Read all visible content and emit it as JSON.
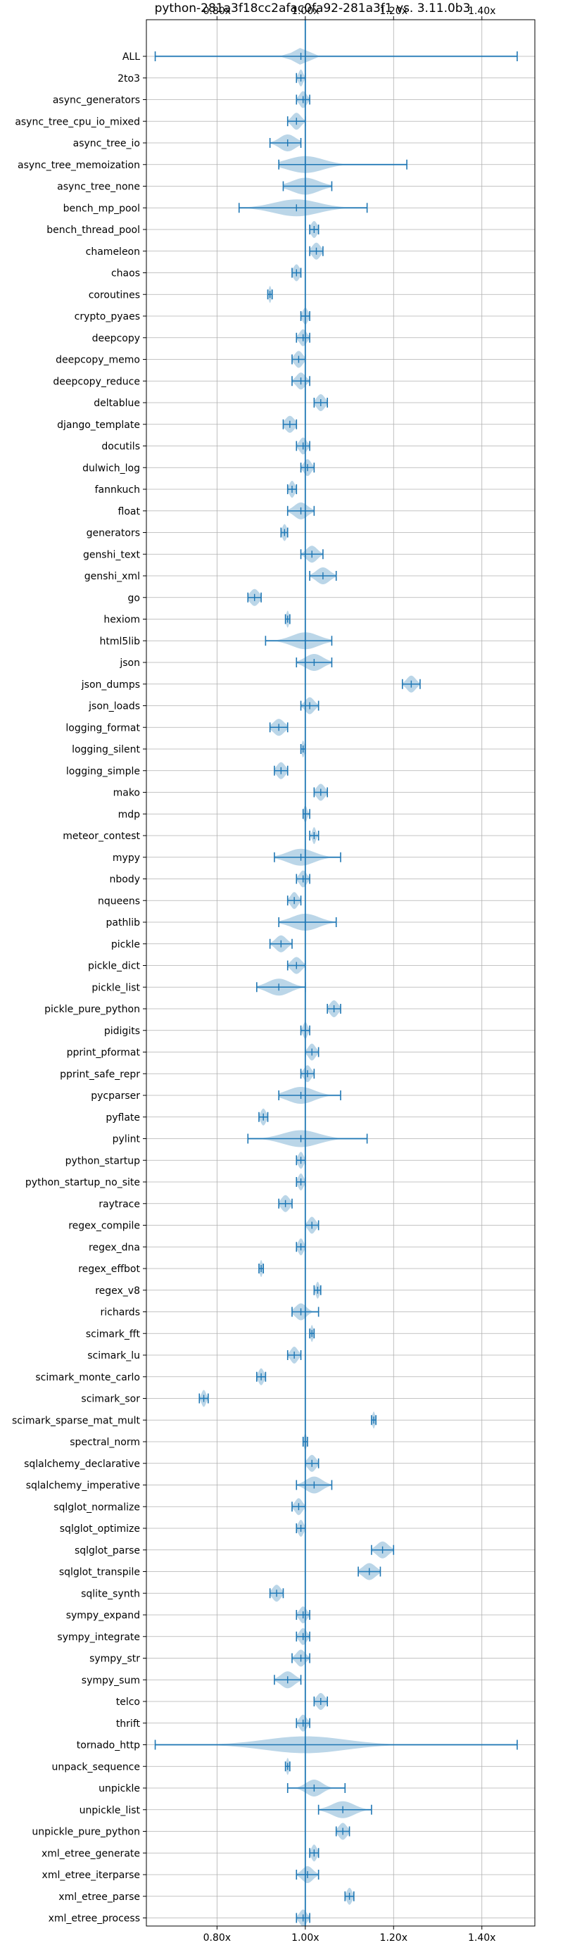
{
  "chart_data": {
    "type": "violin",
    "title": "python-281a3f18cc2afac0fa92-281a3f1 vs. 3.11.0b3",
    "xlabel": "",
    "ylabel": "",
    "xlim": [
      0.64,
      1.52
    ],
    "x_ticks": [
      0.8,
      1.0,
      1.2,
      1.4
    ],
    "x_tick_labels": [
      "0.80x",
      "1.00x",
      "1.20x",
      "1.40x"
    ],
    "reference_line": 1.0,
    "grid": true,
    "colors": {
      "violin": "#1f77b4",
      "violin_fill_opacity": 0.3,
      "axis": "#000000",
      "grid": "#b0b0b0"
    },
    "series": [
      {
        "name": "ALL",
        "min": 0.66,
        "max": 1.48,
        "median": 0.99,
        "spread": 0.017
      },
      {
        "name": "2to3",
        "min": 0.98,
        "max": 1.0,
        "median": 0.99,
        "spread": 0.005
      },
      {
        "name": "async_generators",
        "min": 0.98,
        "max": 1.01,
        "median": 0.995,
        "spread": 0.008
      },
      {
        "name": "async_tree_cpu_io_mixed",
        "min": 0.96,
        "max": 1.0,
        "median": 0.98,
        "spread": 0.01
      },
      {
        "name": "async_tree_io",
        "min": 0.92,
        "max": 0.99,
        "median": 0.96,
        "spread": 0.018
      },
      {
        "name": "async_tree_memoization",
        "min": 0.94,
        "max": 1.23,
        "median": 1.0,
        "spread": 0.04
      },
      {
        "name": "async_tree_none",
        "min": 0.95,
        "max": 1.06,
        "median": 1.0,
        "spread": 0.03
      },
      {
        "name": "bench_mp_pool",
        "min": 0.85,
        "max": 1.14,
        "median": 0.98,
        "spread": 0.05
      },
      {
        "name": "bench_thread_pool",
        "min": 1.01,
        "max": 1.03,
        "median": 1.02,
        "spread": 0.007
      },
      {
        "name": "chameleon",
        "min": 1.01,
        "max": 1.04,
        "median": 1.025,
        "spread": 0.009
      },
      {
        "name": "chaos",
        "min": 0.97,
        "max": 0.99,
        "median": 0.98,
        "spread": 0.007
      },
      {
        "name": "coroutines",
        "min": 0.915,
        "max": 0.925,
        "median": 0.92,
        "spread": 0.003
      },
      {
        "name": "crypto_pyaes",
        "min": 0.99,
        "max": 1.01,
        "median": 1.0,
        "spread": 0.006
      },
      {
        "name": "deepcopy",
        "min": 0.98,
        "max": 1.01,
        "median": 0.995,
        "spread": 0.008
      },
      {
        "name": "deepcopy_memo",
        "min": 0.97,
        "max": 1.0,
        "median": 0.985,
        "spread": 0.009
      },
      {
        "name": "deepcopy_reduce",
        "min": 0.97,
        "max": 1.01,
        "median": 0.99,
        "spread": 0.01
      },
      {
        "name": "deltablue",
        "min": 1.02,
        "max": 1.05,
        "median": 1.035,
        "spread": 0.009
      },
      {
        "name": "django_template",
        "min": 0.95,
        "max": 0.98,
        "median": 0.965,
        "spread": 0.01
      },
      {
        "name": "docutils",
        "min": 0.98,
        "max": 1.01,
        "median": 0.995,
        "spread": 0.008
      },
      {
        "name": "dulwich_log",
        "min": 0.99,
        "max": 1.02,
        "median": 1.005,
        "spread": 0.008
      },
      {
        "name": "fannkuch",
        "min": 0.96,
        "max": 0.98,
        "median": 0.97,
        "spread": 0.006
      },
      {
        "name": "float",
        "min": 0.96,
        "max": 1.02,
        "median": 0.99,
        "spread": 0.015
      },
      {
        "name": "generators",
        "min": 0.945,
        "max": 0.96,
        "median": 0.953,
        "spread": 0.005
      },
      {
        "name": "genshi_text",
        "min": 0.99,
        "max": 1.04,
        "median": 1.015,
        "spread": 0.012
      },
      {
        "name": "genshi_xml",
        "min": 1.01,
        "max": 1.07,
        "median": 1.04,
        "spread": 0.015
      },
      {
        "name": "go",
        "min": 0.87,
        "max": 0.9,
        "median": 0.885,
        "spread": 0.01
      },
      {
        "name": "hexiom",
        "min": 0.955,
        "max": 0.965,
        "median": 0.96,
        "spread": 0.003
      },
      {
        "name": "html5lib",
        "min": 0.91,
        "max": 1.06,
        "median": 1.0,
        "spread": 0.03
      },
      {
        "name": "json",
        "min": 0.98,
        "max": 1.06,
        "median": 1.02,
        "spread": 0.02
      },
      {
        "name": "json_dumps",
        "min": 1.22,
        "max": 1.26,
        "median": 1.24,
        "spread": 0.01
      },
      {
        "name": "json_loads",
        "min": 0.99,
        "max": 1.03,
        "median": 1.01,
        "spread": 0.01
      },
      {
        "name": "logging_format",
        "min": 0.92,
        "max": 0.96,
        "median": 0.94,
        "spread": 0.012
      },
      {
        "name": "logging_silent",
        "min": 0.99,
        "max": 1.0,
        "median": 0.995,
        "spread": 0.003
      },
      {
        "name": "logging_simple",
        "min": 0.93,
        "max": 0.96,
        "median": 0.945,
        "spread": 0.009
      },
      {
        "name": "mako",
        "min": 1.02,
        "max": 1.05,
        "median": 1.035,
        "spread": 0.009
      },
      {
        "name": "mdp",
        "min": 0.995,
        "max": 1.01,
        "median": 1.0,
        "spread": 0.004
      },
      {
        "name": "meteor_contest",
        "min": 1.01,
        "max": 1.03,
        "median": 1.02,
        "spread": 0.004
      },
      {
        "name": "mypy",
        "min": 0.93,
        "max": 1.08,
        "median": 0.99,
        "spread": 0.03
      },
      {
        "name": "nbody",
        "min": 0.98,
        "max": 1.01,
        "median": 0.995,
        "spread": 0.008
      },
      {
        "name": "nqueens",
        "min": 0.96,
        "max": 0.99,
        "median": 0.975,
        "spread": 0.008
      },
      {
        "name": "pathlib",
        "min": 0.94,
        "max": 1.07,
        "median": 1.0,
        "spread": 0.03
      },
      {
        "name": "pickle",
        "min": 0.92,
        "max": 0.97,
        "median": 0.945,
        "spread": 0.012
      },
      {
        "name": "pickle_dict",
        "min": 0.96,
        "max": 1.0,
        "median": 0.98,
        "spread": 0.011
      },
      {
        "name": "pickle_list",
        "min": 0.89,
        "max": 1.0,
        "median": 0.94,
        "spread": 0.025
      },
      {
        "name": "pickle_pure_python",
        "min": 1.05,
        "max": 1.08,
        "median": 1.065,
        "spread": 0.009
      },
      {
        "name": "pidigits",
        "min": 0.99,
        "max": 1.01,
        "median": 1.0,
        "spread": 0.005
      },
      {
        "name": "pprint_pformat",
        "min": 1.0,
        "max": 1.03,
        "median": 1.015,
        "spread": 0.008
      },
      {
        "name": "pprint_safe_repr",
        "min": 0.99,
        "max": 1.02,
        "median": 1.005,
        "spread": 0.008
      },
      {
        "name": "pycparser",
        "min": 0.94,
        "max": 1.08,
        "median": 0.99,
        "spread": 0.03
      },
      {
        "name": "pyflate",
        "min": 0.895,
        "max": 0.915,
        "median": 0.905,
        "spread": 0.006
      },
      {
        "name": "pylint",
        "min": 0.87,
        "max": 1.14,
        "median": 0.99,
        "spread": 0.04
      },
      {
        "name": "python_startup",
        "min": 0.98,
        "max": 1.0,
        "median": 0.99,
        "spread": 0.006
      },
      {
        "name": "python_startup_no_site",
        "min": 0.98,
        "max": 1.0,
        "median": 0.99,
        "spread": 0.006
      },
      {
        "name": "raytrace",
        "min": 0.94,
        "max": 0.97,
        "median": 0.955,
        "spread": 0.009
      },
      {
        "name": "regex_compile",
        "min": 1.0,
        "max": 1.03,
        "median": 1.015,
        "spread": 0.008
      },
      {
        "name": "regex_dna",
        "min": 0.98,
        "max": 1.0,
        "median": 0.99,
        "spread": 0.006
      },
      {
        "name": "regex_effbot",
        "min": 0.895,
        "max": 0.905,
        "median": 0.9,
        "spread": 0.003
      },
      {
        "name": "regex_v8",
        "min": 1.02,
        "max": 1.035,
        "median": 1.028,
        "spread": 0.004
      },
      {
        "name": "richards",
        "min": 0.97,
        "max": 1.03,
        "median": 0.99,
        "spread": 0.012
      },
      {
        "name": "scimark_fft",
        "min": 1.01,
        "max": 1.02,
        "median": 1.015,
        "spread": 0.003
      },
      {
        "name": "scimark_lu",
        "min": 0.96,
        "max": 0.99,
        "median": 0.975,
        "spread": 0.008
      },
      {
        "name": "scimark_monte_carlo",
        "min": 0.89,
        "max": 0.91,
        "median": 0.9,
        "spread": 0.006
      },
      {
        "name": "scimark_sor",
        "min": 0.76,
        "max": 0.78,
        "median": 0.77,
        "spread": 0.005
      },
      {
        "name": "scimark_sparse_mat_mult",
        "min": 1.15,
        "max": 1.16,
        "median": 1.155,
        "spread": 0.003
      },
      {
        "name": "spectral_norm",
        "min": 0.995,
        "max": 1.005,
        "median": 1.0,
        "spread": 0.003
      },
      {
        "name": "sqlalchemy_declarative",
        "min": 1.0,
        "max": 1.03,
        "median": 1.015,
        "spread": 0.009
      },
      {
        "name": "sqlalchemy_imperative",
        "min": 0.98,
        "max": 1.06,
        "median": 1.02,
        "spread": 0.018
      },
      {
        "name": "sqlglot_normalize",
        "min": 0.97,
        "max": 1.0,
        "median": 0.985,
        "spread": 0.008
      },
      {
        "name": "sqlglot_optimize",
        "min": 0.98,
        "max": 1.0,
        "median": 0.99,
        "spread": 0.006
      },
      {
        "name": "sqlglot_parse",
        "min": 1.15,
        "max": 1.2,
        "median": 1.175,
        "spread": 0.013
      },
      {
        "name": "sqlglot_transpile",
        "min": 1.12,
        "max": 1.17,
        "median": 1.145,
        "spread": 0.014
      },
      {
        "name": "sqlite_synth",
        "min": 0.92,
        "max": 0.95,
        "median": 0.935,
        "spread": 0.009
      },
      {
        "name": "sympy_expand",
        "min": 0.98,
        "max": 1.01,
        "median": 0.995,
        "spread": 0.008
      },
      {
        "name": "sympy_integrate",
        "min": 0.98,
        "max": 1.01,
        "median": 0.995,
        "spread": 0.008
      },
      {
        "name": "sympy_str",
        "min": 0.97,
        "max": 1.01,
        "median": 0.99,
        "spread": 0.01
      },
      {
        "name": "sympy_sum",
        "min": 0.93,
        "max": 0.99,
        "median": 0.96,
        "spread": 0.015
      },
      {
        "name": "telco",
        "min": 1.02,
        "max": 1.05,
        "median": 1.035,
        "spread": 0.009
      },
      {
        "name": "thrift",
        "min": 0.98,
        "max": 1.01,
        "median": 0.995,
        "spread": 0.008
      },
      {
        "name": "tornado_http",
        "min": 0.66,
        "max": 1.48,
        "median": 1.0,
        "spread": 0.09
      },
      {
        "name": "unpack_sequence",
        "min": 0.955,
        "max": 0.965,
        "median": 0.96,
        "spread": 0.003
      },
      {
        "name": "unpickle",
        "min": 0.96,
        "max": 1.09,
        "median": 1.02,
        "spread": 0.018
      },
      {
        "name": "unpickle_list",
        "min": 1.03,
        "max": 1.15,
        "median": 1.085,
        "spread": 0.025
      },
      {
        "name": "unpickle_pure_python",
        "min": 1.07,
        "max": 1.1,
        "median": 1.085,
        "spread": 0.009
      },
      {
        "name": "xml_etree_generate",
        "min": 1.01,
        "max": 1.03,
        "median": 1.02,
        "spread": 0.006
      },
      {
        "name": "xml_etree_iterparse",
        "min": 0.98,
        "max": 1.03,
        "median": 1.005,
        "spread": 0.012
      },
      {
        "name": "xml_etree_parse",
        "min": 1.09,
        "max": 1.11,
        "median": 1.1,
        "spread": 0.006
      },
      {
        "name": "xml_etree_process",
        "min": 0.98,
        "max": 1.01,
        "median": 0.995,
        "spread": 0.008
      }
    ]
  }
}
